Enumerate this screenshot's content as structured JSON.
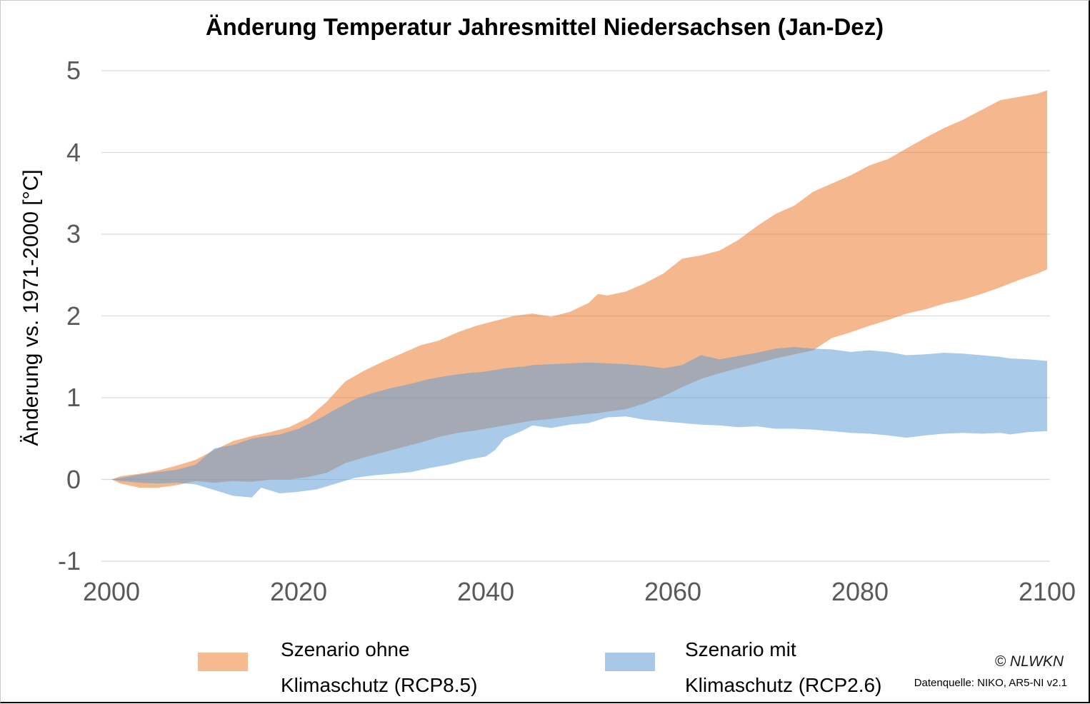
{
  "title": "Änderung Temperatur Jahresmittel Niedersachsen (Jan-Dez)",
  "y_axis": {
    "label": "Änderung vs. 1971-2000 [°C]",
    "ticks": [
      5,
      4,
      3,
      2,
      1,
      0,
      -1
    ]
  },
  "x_axis": {
    "ticks": [
      2000,
      2020,
      2040,
      2060,
      2080,
      2100
    ]
  },
  "legend": {
    "rcp85": {
      "line1": "Szenario ohne",
      "line2": "Klimaschutz (RCP8.5)",
      "swatch_color": "#F5BA8E"
    },
    "rcp26": {
      "line1": "Szenario mit",
      "line2": "Klimaschutz (RCP2.6)",
      "swatch_color": "#A9C7E7"
    }
  },
  "footer": {
    "copyright": "© NLWKN",
    "source": "Datenquelle: NIKO, AR5-NI v2.1"
  },
  "colors": {
    "gridline": "#D9D9D9",
    "tick_text": "#595959",
    "rcp85_band_base": "#ED7D31",
    "rcp26_band_base": "#5B9BD5",
    "rcp85_band_on_white": "#F5BA8E",
    "rcp26_band_on_white": "#A9C7E7",
    "overlap_gray": "#A5A6B0"
  },
  "chart_data": {
    "type": "area",
    "title": "Änderung Temperatur Jahresmittel Niedersachsen (Jan-Dez)",
    "xlabel": "",
    "ylabel": "Änderung vs. 1971-2000 [°C]",
    "xlim": [
      2000,
      2100
    ],
    "ylim": [
      -1,
      5
    ],
    "grid": "horizontal",
    "legend_position": "bottom",
    "note": "Two overlapping uncertainty bands (min/max range per year); overlap renders gray. Points are [year, lower, upper] in °C vs 1971-2000.",
    "series": [
      {
        "name": "Szenario ohne Klimaschutz (RCP8.5)",
        "fill_base": "#ED7D31",
        "fill_opacity": 0.55,
        "points": [
          [
            2000,
            0,
            0
          ],
          [
            2001,
            -0.05,
            0.04
          ],
          [
            2003,
            -0.1,
            0.07
          ],
          [
            2005,
            -0.1,
            0.11
          ],
          [
            2007,
            -0.07,
            0.17
          ],
          [
            2009,
            -0.02,
            0.24
          ],
          [
            2011,
            -0.04,
            0.36
          ],
          [
            2013,
            -0.02,
            0.47
          ],
          [
            2015,
            -0.03,
            0.53
          ],
          [
            2017,
            0,
            0.58
          ],
          [
            2019,
            0,
            0.64
          ],
          [
            2021,
            0.03,
            0.75
          ],
          [
            2023,
            0.08,
            0.95
          ],
          [
            2025,
            0.2,
            1.2
          ],
          [
            2027,
            0.27,
            1.33
          ],
          [
            2029,
            0.33,
            1.44
          ],
          [
            2031,
            0.39,
            1.54
          ],
          [
            2033,
            0.45,
            1.64
          ],
          [
            2035,
            0.52,
            1.7
          ],
          [
            2037,
            0.57,
            1.8
          ],
          [
            2039,
            0.6,
            1.88
          ],
          [
            2041,
            0.64,
            1.94
          ],
          [
            2043,
            0.68,
            2.0
          ],
          [
            2045,
            0.72,
            2.03
          ],
          [
            2047,
            0.74,
            1.99
          ],
          [
            2049,
            0.77,
            2.05
          ],
          [
            2051,
            0.8,
            2.16
          ],
          [
            2052,
            0.81,
            2.27
          ],
          [
            2053,
            0.83,
            2.25
          ],
          [
            2055,
            0.86,
            2.3
          ],
          [
            2057,
            0.93,
            2.4
          ],
          [
            2059,
            1.02,
            2.52
          ],
          [
            2061,
            1.13,
            2.7
          ],
          [
            2063,
            1.23,
            2.74
          ],
          [
            2065,
            1.3,
            2.8
          ],
          [
            2067,
            1.36,
            2.93
          ],
          [
            2069,
            1.42,
            3.1
          ],
          [
            2071,
            1.48,
            3.25
          ],
          [
            2073,
            1.53,
            3.35
          ],
          [
            2075,
            1.58,
            3.52
          ],
          [
            2077,
            1.73,
            3.62
          ],
          [
            2079,
            1.8,
            3.72
          ],
          [
            2081,
            1.88,
            3.84
          ],
          [
            2083,
            1.95,
            3.92
          ],
          [
            2085,
            2.03,
            4.05
          ],
          [
            2087,
            2.08,
            4.18
          ],
          [
            2089,
            2.15,
            4.3
          ],
          [
            2091,
            2.2,
            4.4
          ],
          [
            2093,
            2.27,
            4.52
          ],
          [
            2095,
            2.35,
            4.64
          ],
          [
            2097,
            2.44,
            4.68
          ],
          [
            2099,
            2.52,
            4.72
          ],
          [
            2100,
            2.57,
            4.76
          ]
        ]
      },
      {
        "name": "Szenario mit Klimaschutz (RCP2.6)",
        "fill_base": "#5B9BD5",
        "fill_opacity": 0.52,
        "points": [
          [
            2000,
            0,
            0
          ],
          [
            2001,
            -0.02,
            0.02
          ],
          [
            2003,
            -0.04,
            0.06
          ],
          [
            2005,
            -0.05,
            0.09
          ],
          [
            2007,
            -0.04,
            0.12
          ],
          [
            2009,
            -0.06,
            0.18
          ],
          [
            2011,
            -0.13,
            0.38
          ],
          [
            2013,
            -0.2,
            0.42
          ],
          [
            2015,
            -0.22,
            0.5
          ],
          [
            2016,
            -0.1,
            0.52
          ],
          [
            2018,
            -0.17,
            0.55
          ],
          [
            2020,
            -0.15,
            0.62
          ],
          [
            2022,
            -0.12,
            0.73
          ],
          [
            2024,
            -0.05,
            0.86
          ],
          [
            2026,
            0.02,
            0.98
          ],
          [
            2028,
            0.05,
            1.06
          ],
          [
            2030,
            0.07,
            1.12
          ],
          [
            2032,
            0.09,
            1.17
          ],
          [
            2034,
            0.14,
            1.23
          ],
          [
            2036,
            0.18,
            1.27
          ],
          [
            2038,
            0.24,
            1.3
          ],
          [
            2040,
            0.28,
            1.32
          ],
          [
            2041,
            0.36,
            1.34
          ],
          [
            2042,
            0.5,
            1.36
          ],
          [
            2044,
            0.6,
            1.38
          ],
          [
            2045,
            0.66,
            1.4
          ],
          [
            2047,
            0.63,
            1.41
          ],
          [
            2049,
            0.67,
            1.42
          ],
          [
            2051,
            0.69,
            1.43
          ],
          [
            2053,
            0.76,
            1.42
          ],
          [
            2055,
            0.77,
            1.41
          ],
          [
            2057,
            0.73,
            1.39
          ],
          [
            2059,
            0.71,
            1.36
          ],
          [
            2061,
            0.69,
            1.4
          ],
          [
            2063,
            0.67,
            1.52
          ],
          [
            2065,
            0.66,
            1.47
          ],
          [
            2067,
            0.64,
            1.51
          ],
          [
            2069,
            0.65,
            1.55
          ],
          [
            2071,
            0.62,
            1.6
          ],
          [
            2073,
            0.62,
            1.62
          ],
          [
            2075,
            0.61,
            1.6
          ],
          [
            2077,
            0.59,
            1.59
          ],
          [
            2079,
            0.57,
            1.56
          ],
          [
            2081,
            0.56,
            1.58
          ],
          [
            2083,
            0.54,
            1.56
          ],
          [
            2085,
            0.51,
            1.52
          ],
          [
            2087,
            0.54,
            1.53
          ],
          [
            2089,
            0.56,
            1.55
          ],
          [
            2091,
            0.57,
            1.54
          ],
          [
            2093,
            0.56,
            1.52
          ],
          [
            2095,
            0.57,
            1.5
          ],
          [
            2096,
            0.55,
            1.48
          ],
          [
            2098,
            0.58,
            1.47
          ],
          [
            2100,
            0.59,
            1.45
          ]
        ]
      }
    ]
  }
}
